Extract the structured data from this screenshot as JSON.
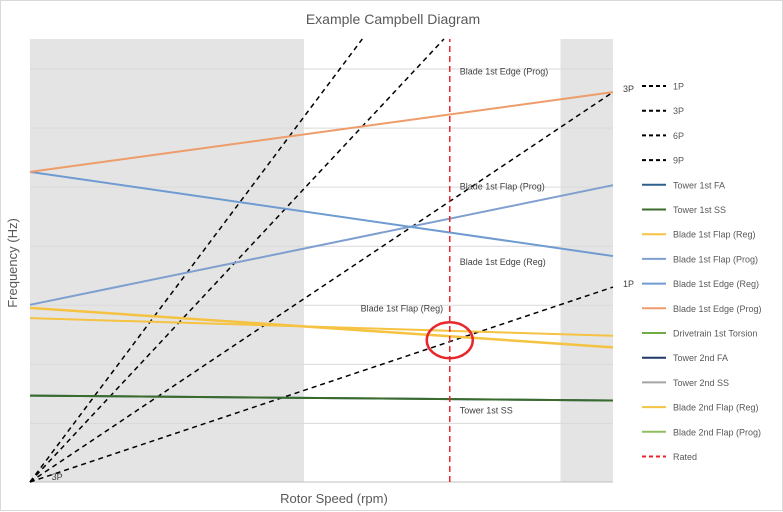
{
  "chart_data": {
    "type": "line",
    "title": "Example Campbell Diagram",
    "xlabel": "Rotor Speed (rpm)",
    "ylabel": "Frequency (Hz)",
    "xlim": [
      0,
      100
    ],
    "ylim": [
      0,
      100
    ],
    "grid": "horizontal",
    "legend_position": "right",
    "shaded_bands": [
      {
        "x": [
          0,
          47
        ]
      },
      {
        "x": [
          91,
          100
        ]
      }
    ],
    "series": [
      {
        "name": "1P",
        "color": "#000000",
        "dash": true,
        "x": [
          0,
          100
        ],
        "y": [
          0,
          44
        ]
      },
      {
        "name": "3P",
        "color": "#000000",
        "dash": true,
        "x": [
          0,
          100
        ],
        "y": [
          0,
          88
        ]
      },
      {
        "name": "6P",
        "color": "#000000",
        "dash": true,
        "x": [
          0,
          71
        ],
        "y": [
          0,
          100
        ]
      },
      {
        "name": "9P",
        "color": "#000000",
        "dash": true,
        "x": [
          0,
          57
        ],
        "y": [
          0,
          100
        ]
      },
      {
        "name": "Tower 1st FA",
        "color": "#2e5f8f",
        "dash": false,
        "x": [
          0,
          100
        ],
        "y": [
          19.5,
          18.4
        ]
      },
      {
        "name": "Tower 1st SS",
        "color": "#3a6b2a",
        "dash": false,
        "x": [
          0,
          100
        ],
        "y": [
          19.5,
          18.4
        ]
      },
      {
        "name": "Blade 1st Flap (Reg)",
        "color": "#f5c242",
        "dash": false,
        "x": [
          0,
          100
        ],
        "y": [
          37,
          33
        ]
      },
      {
        "name": "Blade 1st Flap (Prog)",
        "color": "#7f9fcf",
        "dash": false,
        "x": [
          0,
          100
        ],
        "y": [
          40,
          67
        ]
      },
      {
        "name": "Blade 1st Edge (Reg)",
        "color": "#6f9bd1",
        "dash": false,
        "x": [
          0,
          100
        ],
        "y": [
          70,
          51
        ]
      },
      {
        "name": "Blade 1st Edge (Prog)",
        "color": "#ee9c6a",
        "dash": false,
        "x": [
          0,
          100
        ],
        "y": [
          70,
          88
        ]
      },
      {
        "name": "Drivetrain 1st Torsion",
        "color": "#71ad47",
        "dash": false,
        "x": [],
        "y": []
      },
      {
        "name": "Tower 2nd FA",
        "color": "#1f3864",
        "dash": false,
        "x": [],
        "y": []
      },
      {
        "name": "Tower 2nd SS",
        "color": "#a5a5a5",
        "dash": false,
        "x": [],
        "y": []
      },
      {
        "name": "Blade 2nd Flap (Reg)",
        "color": "#f5c242",
        "dash": false,
        "x": [
          0,
          100
        ],
        "y": [
          39.3,
          30.4
        ]
      },
      {
        "name": "Blade 2nd Flap (Prog)",
        "color": "#8dbf5f",
        "dash": false,
        "x": [],
        "y": []
      },
      {
        "name": "Rated",
        "color": "#e8262b",
        "dash": true,
        "x": [
          72,
          72
        ],
        "y": [
          0,
          100
        ]
      }
    ],
    "annotations": [
      {
        "text": "Blade 1st Edge (Prog)",
        "x": 72,
        "y": 92
      },
      {
        "text": "Blade 1st Flap (Prog)",
        "x": 72,
        "y": 66
      },
      {
        "text": "Blade 1st Edge (Reg)",
        "x": 72,
        "y": 49
      },
      {
        "text": "Blade 1st Flap (Reg)",
        "x": 55,
        "y": 38.5
      },
      {
        "text": "Tower 1st SS",
        "x": 72,
        "y": 15.5
      },
      {
        "text": "3P",
        "x": 100,
        "y": 88
      },
      {
        "text": "1P",
        "x": 100,
        "y": 44
      },
      {
        "text": "3P",
        "x": 2,
        "y": 0.5
      }
    ],
    "highlight_circle": {
      "x": 72,
      "y": 32
    }
  },
  "colors": {
    "shade": "#e4e4e4",
    "grid": "#d9d9d9",
    "text": "#595959",
    "highlight": "#e8262b"
  }
}
